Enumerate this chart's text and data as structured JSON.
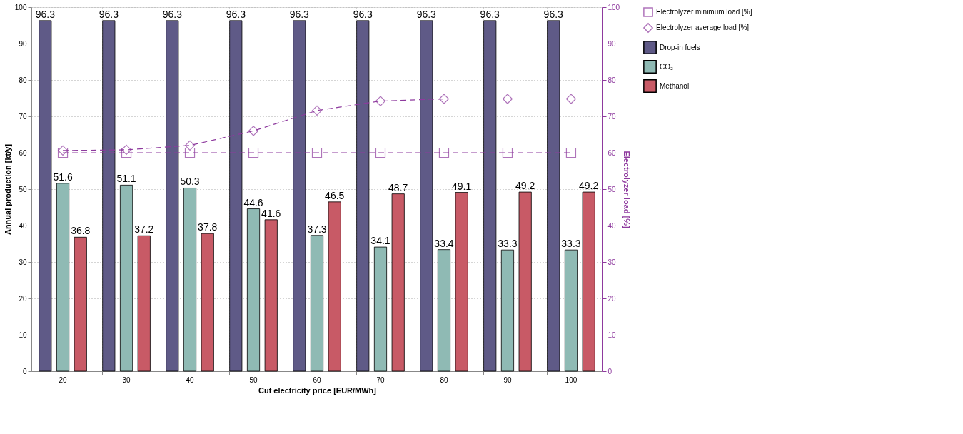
{
  "chart_data": {
    "type": "bar",
    "xlabel": "Cut electricity price [EUR/MWh]",
    "ylabel": "Annual production [kt/y]",
    "y2label": "Electrolyzer load [%]",
    "categories": [
      "20",
      "30",
      "40",
      "50",
      "60",
      "70",
      "80",
      "90",
      "100"
    ],
    "series": [
      {
        "name": "Drop-in fuels",
        "color": "#5f5a87",
        "values": [
          96.3,
          96.3,
          96.3,
          96.3,
          96.3,
          96.3,
          96.3,
          96.3,
          96.3
        ],
        "value_labels": [
          "96.3",
          "96.3",
          "96.3",
          "96.3",
          "96.3",
          "96.3",
          "96.3",
          "96.3",
          "96.3"
        ]
      },
      {
        "name": "CO₂",
        "color": "#8fbab4",
        "values": [
          51.6,
          51.1,
          50.3,
          44.6,
          37.3,
          34.1,
          33.4,
          33.3,
          33.3
        ],
        "value_labels": [
          "51.6",
          "51.1",
          "50.3",
          "44.6",
          "37.3",
          "34.1",
          "33.4",
          "33.3",
          "33.3"
        ]
      },
      {
        "name": "Methanol",
        "color": "#c85a66",
        "values": [
          36.8,
          37.2,
          37.8,
          41.6,
          46.5,
          48.7,
          49.1,
          49.2,
          49.2
        ],
        "value_labels": [
          "36.8",
          "37.2",
          "37.8",
          "41.6",
          "46.5",
          "48.7",
          "49.1",
          "49.2",
          "49.2"
        ]
      },
      {
        "name": "Electrolyzer minimum load [%]",
        "type": "line",
        "axis": "y2",
        "color": "#8e3a9e",
        "marker": "square",
        "line_style": "dashed",
        "values": [
          60,
          60,
          60,
          60,
          60,
          60,
          60,
          60,
          60
        ]
      },
      {
        "name": "Electrolyzer average load [%]",
        "type": "line",
        "axis": "y2",
        "color": "#8e3a9e",
        "marker": "diamond",
        "line_style": "dashed",
        "values": [
          60.6,
          60.8,
          62.0,
          66.0,
          71.6,
          74.2,
          74.8,
          74.8,
          74.8
        ]
      }
    ],
    "ylim": [
      0,
      100
    ],
    "yticks": [
      0,
      10,
      20,
      30,
      40,
      50,
      60,
      70,
      80,
      90,
      100
    ],
    "y2lim": [
      0,
      100
    ],
    "y2ticks": [
      0,
      10,
      20,
      30,
      40,
      50,
      60,
      70,
      80,
      90,
      100
    ],
    "grid": true,
    "legend": "top right"
  }
}
